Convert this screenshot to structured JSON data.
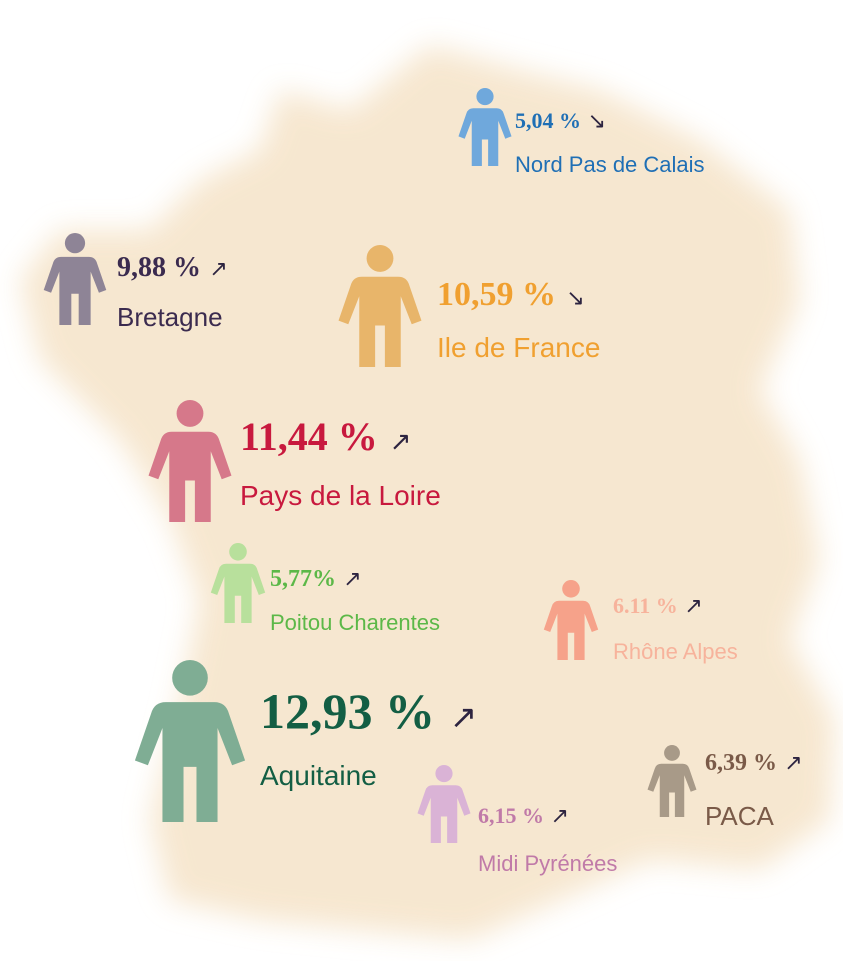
{
  "regions": [
    {
      "name": "Nord Pas de Calais",
      "value": "5,04 %",
      "trend": "↘",
      "color": "#1f6fb5",
      "icon_color": "#6fa8dc"
    },
    {
      "name": "Bretagne",
      "value": "9,88 %",
      "trend": "↗",
      "color": "#3b2b4f",
      "icon_color": "#8e8496"
    },
    {
      "name": "Ile de France",
      "value": "10,59 %",
      "trend": "↘",
      "color": "#f0a030",
      "icon_color": "#e8b56a"
    },
    {
      "name": "Pays de la Loire",
      "value": "11,44 %",
      "trend": "↗",
      "color": "#c8193e",
      "icon_color": "#d6788a"
    },
    {
      "name": "Poitou Charentes",
      "value": "5,77%",
      "trend": "↗",
      "color": "#5cb848",
      "icon_color": "#b8e09c"
    },
    {
      "name": "Rhône Alpes",
      "value": "6.11 %",
      "trend": "↗",
      "color": "#f7b39c",
      "icon_color": "#f6a28a"
    },
    {
      "name": "Aquitaine",
      "value": "12,93 %",
      "trend": "↗",
      "color": "#135e44",
      "icon_color": "#7fad94"
    },
    {
      "name": "Midi Pyrénées",
      "value": "6,15 %",
      "trend": "↗",
      "color": "#c07aa8",
      "icon_color": "#dab3d6"
    },
    {
      "name": "PACA",
      "value": "6,39 %",
      "trend": "↗",
      "color": "#7a5a48",
      "icon_color": "#a89a88"
    }
  ]
}
